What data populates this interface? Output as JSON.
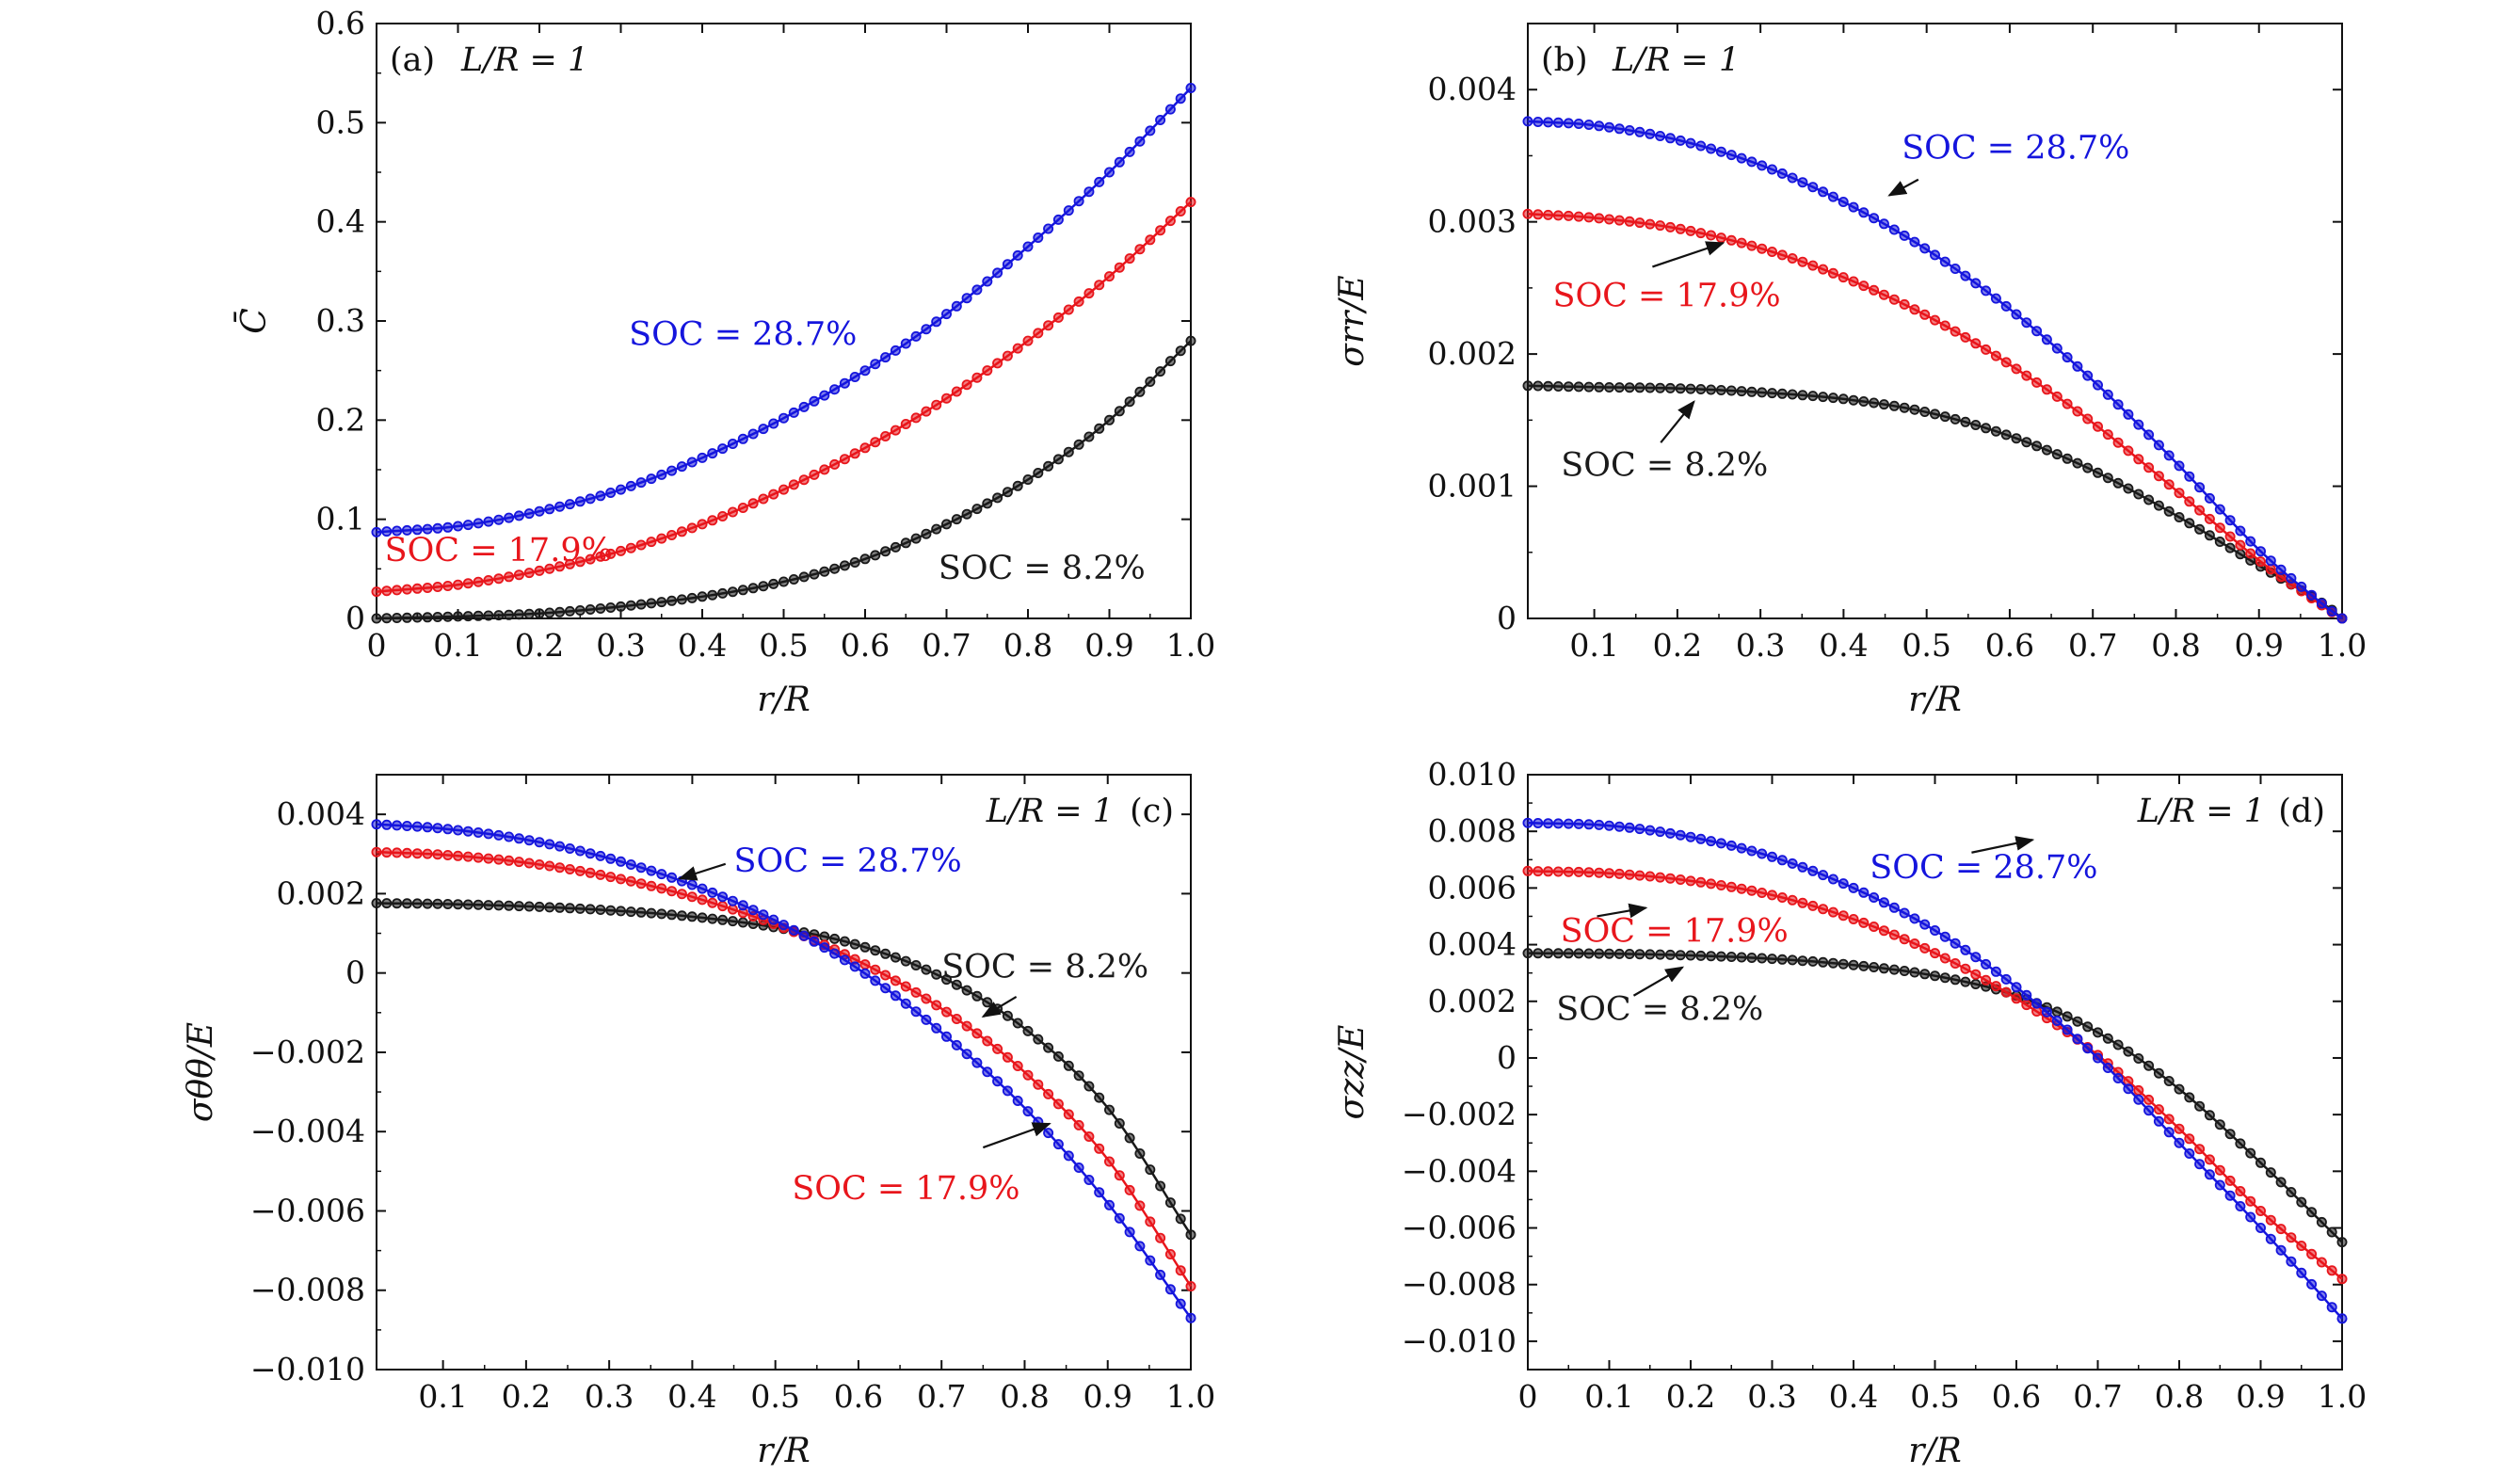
{
  "colors": {
    "s82": "#1a1a1a",
    "s179": "#e8161c",
    "s287": "#1515dd"
  },
  "chart_data": [
    {
      "id": "a",
      "type": "line",
      "panel_label": "(a)",
      "geometry": "L/R = 1",
      "xlabel": "r/R",
      "ylabel": "C̄",
      "xlim": [
        0,
        1
      ],
      "ylim": [
        0,
        0.6
      ],
      "xticks": [
        0,
        0.1,
        0.2,
        0.3,
        0.4,
        0.5,
        0.6,
        0.7,
        0.8,
        0.9,
        1.0
      ],
      "xtick_labels": [
        "0",
        "0.1",
        "0.2",
        "0.3",
        "0.4",
        "0.5",
        "0.6",
        "0.7",
        "0.8",
        "0.9",
        "1.0"
      ],
      "yticks": [
        0,
        0.1,
        0.2,
        0.3,
        0.4,
        0.5,
        0.6
      ],
      "ytick_labels": [
        "0",
        "0.1",
        "0.2",
        "0.3",
        "0.4",
        "0.5",
        "0.6"
      ],
      "series": [
        {
          "name": "SOC = 8.2%",
          "color_key": "s82",
          "x": [
            0,
            0.1,
            0.2,
            0.3,
            0.4,
            0.5,
            0.6,
            0.7,
            0.8,
            0.9,
            1.0
          ],
          "values": [
            0.0,
            0.002,
            0.005,
            0.012,
            0.022,
            0.037,
            0.06,
            0.095,
            0.14,
            0.2,
            0.28
          ]
        },
        {
          "name": "SOC = 17.9%",
          "color_key": "s179",
          "x": [
            0,
            0.1,
            0.2,
            0.3,
            0.4,
            0.5,
            0.6,
            0.7,
            0.8,
            0.9,
            1.0
          ],
          "values": [
            0.027,
            0.034,
            0.048,
            0.068,
            0.095,
            0.13,
            0.172,
            0.222,
            0.28,
            0.345,
            0.42
          ]
        },
        {
          "name": "SOC = 28.7%",
          "color_key": "s287",
          "x": [
            0,
            0.1,
            0.2,
            0.3,
            0.4,
            0.5,
            0.6,
            0.7,
            0.8,
            0.9,
            1.0
          ],
          "values": [
            0.087,
            0.093,
            0.108,
            0.13,
            0.162,
            0.202,
            0.25,
            0.307,
            0.375,
            0.45,
            0.535
          ]
        }
      ],
      "annotations": [
        {
          "text": "SOC = 28.7%",
          "color_key": "s287",
          "at": [
            0.31,
            0.276
          ],
          "anchor": "start"
        },
        {
          "text": "SOC = 17.9%",
          "color_key": "s179",
          "at": [
            0.01,
            0.058
          ],
          "anchor": "start"
        },
        {
          "text": "SOC = 8.2%",
          "color_key": "s82",
          "at": [
            0.69,
            0.04
          ],
          "anchor": "start"
        }
      ]
    },
    {
      "id": "b",
      "type": "line",
      "panel_label": "(b)",
      "geometry": "L/R = 1",
      "xlabel": "r/R",
      "ylabel": "σrr/E",
      "xlim": [
        0.02,
        1.0
      ],
      "ylim": [
        0,
        0.0045
      ],
      "xticks": [
        0.1,
        0.2,
        0.3,
        0.4,
        0.5,
        0.6,
        0.7,
        0.8,
        0.9,
        1.0
      ],
      "xtick_labels": [
        "0.1",
        "0.2",
        "0.3",
        "0.4",
        "0.5",
        "0.6",
        "0.7",
        "0.8",
        "0.9",
        "1.0"
      ],
      "yticks": [
        0,
        0.001,
        0.002,
        0.003,
        0.004
      ],
      "ytick_labels": [
        "0",
        "0.001",
        "0.002",
        "0.003",
        "0.004"
      ],
      "series": [
        {
          "name": "SOC = 8.2%",
          "color_key": "s82",
          "x": [
            0.02,
            0.1,
            0.2,
            0.3,
            0.4,
            0.5,
            0.6,
            0.7,
            0.8,
            0.9,
            0.98,
            1.0
          ],
          "values": [
            0.00176,
            0.00175,
            0.00174,
            0.00171,
            0.00166,
            0.00156,
            0.00138,
            0.00112,
            0.00078,
            0.0004,
            0.0001,
            0.0
          ]
        },
        {
          "name": "SOC = 17.9%",
          "color_key": "s179",
          "x": [
            0.02,
            0.1,
            0.2,
            0.3,
            0.4,
            0.5,
            0.6,
            0.7,
            0.8,
            0.9,
            0.98,
            1.0
          ],
          "values": [
            0.00306,
            0.00303,
            0.00295,
            0.0028,
            0.00258,
            0.00229,
            0.00192,
            0.00148,
            0.00097,
            0.00044,
            8e-05,
            0.0
          ]
        },
        {
          "name": "SOC = 28.7%",
          "color_key": "s287",
          "x": [
            0.02,
            0.1,
            0.2,
            0.3,
            0.4,
            0.5,
            0.6,
            0.7,
            0.8,
            0.9,
            0.98,
            1.0
          ],
          "values": [
            0.00376,
            0.00373,
            0.00362,
            0.00343,
            0.00315,
            0.00279,
            0.00234,
            0.0018,
            0.00118,
            0.00052,
            9e-05,
            0.0
          ]
        }
      ],
      "annotations": [
        {
          "text": "SOC = 28.7%",
          "color_key": "s287",
          "at": [
            0.47,
            0.00348
          ],
          "anchor": "start",
          "arrow_from": [
            0.49,
            0.00332
          ],
          "arrow_to": [
            0.455,
            0.0032
          ]
        },
        {
          "text": "SOC = 17.9%",
          "color_key": "s179",
          "at": [
            0.05,
            0.00236
          ],
          "anchor": "start",
          "arrow_from": [
            0.17,
            0.00266
          ],
          "arrow_to": [
            0.255,
            0.00284
          ]
        },
        {
          "text": "SOC = 8.2%",
          "color_key": "s82",
          "at": [
            0.06,
            0.00108
          ],
          "anchor": "start",
          "arrow_from": [
            0.18,
            0.00133
          ],
          "arrow_to": [
            0.22,
            0.00164
          ]
        }
      ]
    },
    {
      "id": "c",
      "type": "line",
      "panel_label": "(c)",
      "geometry": "L/R = 1",
      "xlabel": "r/R",
      "ylabel": "σθθ/E",
      "xlim": [
        0.02,
        1.0
      ],
      "ylim": [
        -0.01,
        0.005
      ],
      "xticks": [
        0.1,
        0.2,
        0.3,
        0.4,
        0.5,
        0.6,
        0.7,
        0.8,
        0.9,
        1.0
      ],
      "xtick_labels": [
        "0.1",
        "0.2",
        "0.3",
        "0.4",
        "0.5",
        "0.6",
        "0.7",
        "0.8",
        "0.9",
        "1.0"
      ],
      "yticks": [
        0.004,
        0.002,
        0,
        -0.002,
        -0.004,
        -0.006,
        -0.008,
        -0.01
      ],
      "ytick_labels": [
        "0.004",
        "0.002",
        "0",
        "−0.002",
        "−0.004",
        "−0.006",
        "−0.008",
        "−0.010"
      ],
      "series": [
        {
          "name": "SOC = 8.2%",
          "color_key": "s82",
          "x": [
            0.02,
            0.1,
            0.2,
            0.3,
            0.4,
            0.5,
            0.6,
            0.7,
            0.8,
            0.9,
            1.0
          ],
          "values": [
            0.00176,
            0.00174,
            0.00168,
            0.00158,
            0.00142,
            0.00115,
            0.0007,
            -0.0001,
            -0.0014,
            -0.0034,
            -0.0066
          ]
        },
        {
          "name": "SOC = 17.9%",
          "color_key": "s179",
          "x": [
            0.02,
            0.1,
            0.2,
            0.3,
            0.4,
            0.5,
            0.6,
            0.7,
            0.8,
            0.9,
            1.0
          ],
          "values": [
            0.00305,
            0.00298,
            0.00278,
            0.00243,
            0.00192,
            0.00122,
            0.0003,
            -0.0009,
            -0.0025,
            -0.0047,
            -0.0079
          ]
        },
        {
          "name": "SOC = 28.7%",
          "color_key": "s287",
          "x": [
            0.02,
            0.1,
            0.2,
            0.3,
            0.4,
            0.5,
            0.6,
            0.7,
            0.8,
            0.9,
            1.0
          ],
          "values": [
            0.00375,
            0.00364,
            0.00336,
            0.00289,
            0.00222,
            0.00132,
            0.0001,
            -0.0015,
            -0.0034,
            -0.0058,
            -0.0087
          ]
        }
      ],
      "annotations": [
        {
          "text": "SOC = 28.7%",
          "color_key": "s287",
          "at": [
            0.45,
            0.00255
          ],
          "anchor": "start",
          "arrow_from": [
            0.44,
            0.00275
          ],
          "arrow_to": [
            0.385,
            0.00238
          ]
        },
        {
          "text": "SOC = 8.2%",
          "color_key": "s82",
          "at": [
            0.7,
            -0.00012
          ],
          "anchor": "start",
          "arrow_from": [
            0.79,
            -0.0006
          ],
          "arrow_to": [
            0.75,
            -0.0011
          ]
        },
        {
          "text": "SOC = 17.9%",
          "color_key": "s179",
          "at": [
            0.52,
            -0.0057
          ],
          "anchor": "start",
          "arrow_from": [
            0.75,
            -0.0044
          ],
          "arrow_to": [
            0.83,
            -0.0038
          ]
        }
      ]
    },
    {
      "id": "d",
      "type": "line",
      "panel_label": "(d)",
      "geometry": "L/R = 1",
      "xlabel": "r/R",
      "ylabel": "σzz/E",
      "xlim": [
        0,
        1
      ],
      "ylim": [
        -0.011,
        0.01
      ],
      "xticks": [
        0,
        0.1,
        0.2,
        0.3,
        0.4,
        0.5,
        0.6,
        0.7,
        0.8,
        0.9,
        1.0
      ],
      "xtick_labels": [
        "0",
        "0.1",
        "0.2",
        "0.3",
        "0.4",
        "0.5",
        "0.6",
        "0.7",
        "0.8",
        "0.9",
        "1.0"
      ],
      "yticks": [
        0.01,
        0.008,
        0.006,
        0.004,
        0.002,
        0,
        -0.002,
        -0.004,
        -0.006,
        -0.008,
        -0.01
      ],
      "ytick_labels": [
        "0.010",
        "0.008",
        "0.006",
        "0.004",
        "0.002",
        "0",
        "−0.002",
        "−0.004",
        "−0.006",
        "−0.008",
        "−0.010"
      ],
      "series": [
        {
          "name": "SOC = 8.2%",
          "color_key": "s82",
          "x": [
            0,
            0.1,
            0.2,
            0.3,
            0.4,
            0.5,
            0.6,
            0.7,
            0.8,
            0.9,
            1.0
          ],
          "values": [
            0.0037,
            0.00368,
            0.00362,
            0.0035,
            0.00328,
            0.0029,
            0.0022,
            0.0009,
            -0.0011,
            -0.0037,
            -0.0065
          ]
        },
        {
          "name": "SOC = 17.9%",
          "color_key": "s179",
          "x": [
            0,
            0.1,
            0.2,
            0.3,
            0.4,
            0.5,
            0.6,
            0.7,
            0.8,
            0.9,
            1.0
          ],
          "values": [
            0.0066,
            0.00652,
            0.00625,
            0.00575,
            0.0049,
            0.0037,
            0.0021,
            0.0001,
            -0.0025,
            -0.0054,
            -0.0078
          ]
        },
        {
          "name": "SOC = 28.7%",
          "color_key": "s287",
          "x": [
            0,
            0.1,
            0.2,
            0.3,
            0.4,
            0.5,
            0.6,
            0.7,
            0.8,
            0.9,
            1.0
          ],
          "values": [
            0.0083,
            0.0082,
            0.0078,
            0.0071,
            0.006,
            0.0045,
            0.0025,
            0.0,
            -0.003,
            -0.006,
            -0.0092
          ]
        }
      ],
      "annotations": [
        {
          "text": "SOC = 28.7%",
          "color_key": "s287",
          "at": [
            0.42,
            0.00635
          ],
          "anchor": "start",
          "arrow_from": [
            0.545,
            0.00725
          ],
          "arrow_to": [
            0.62,
            0.0077
          ]
        },
        {
          "text": "SOC = 17.9%",
          "color_key": "s179",
          "at": [
            0.04,
            0.0041
          ],
          "anchor": "start",
          "arrow_from": [
            0.085,
            0.005
          ],
          "arrow_to": [
            0.145,
            0.0053
          ]
        },
        {
          "text": "SOC = 8.2%",
          "color_key": "s82",
          "at": [
            0.035,
            0.00135
          ],
          "anchor": "start",
          "arrow_from": [
            0.13,
            0.0022
          ],
          "arrow_to": [
            0.19,
            0.0032
          ]
        }
      ]
    }
  ]
}
